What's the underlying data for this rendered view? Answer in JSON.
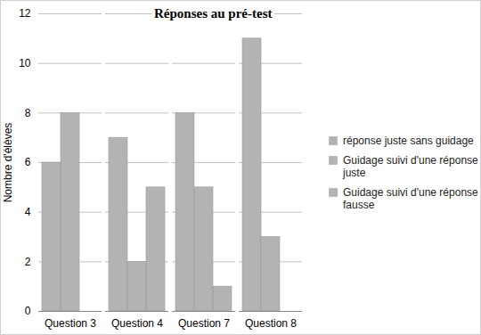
{
  "chart_data": {
    "type": "bar",
    "title": "Réponses au pré-test",
    "y_label": "Nombre d'élèves",
    "categories": [
      "Question 3",
      "Question 4",
      "Question 7",
      "Question 8"
    ],
    "series": [
      {
        "name": "réponse juste sans guidage",
        "color": "#b3b3b3",
        "values": [
          6,
          7,
          8,
          11
        ]
      },
      {
        "name": "Guidage suivi d'une réponse juste",
        "color": "#b3b3b3",
        "values": [
          8,
          2,
          5,
          3
        ]
      },
      {
        "name": "Guidage suivi d'une réponse fausse",
        "color": "#b3b3b3",
        "values": [
          0,
          5,
          1,
          0
        ]
      }
    ],
    "ylim": [
      0,
      12
    ],
    "yticks": [
      0,
      2,
      4,
      6,
      8,
      10,
      12
    ],
    "grid": true,
    "legend": "right"
  }
}
